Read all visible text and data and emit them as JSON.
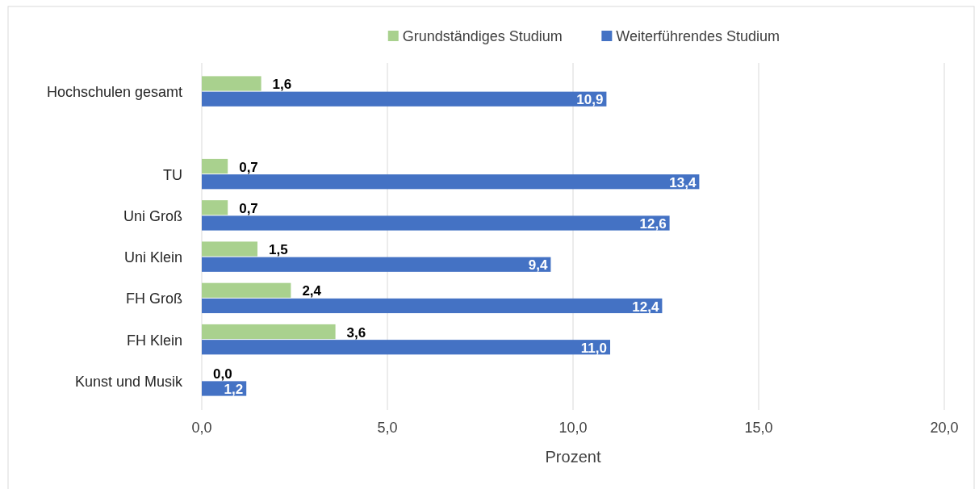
{
  "chart_data": {
    "type": "bar",
    "orientation": "horizontal",
    "xlabel": "Prozent",
    "categories": [
      "Hochschulen gesamt",
      null,
      "TU",
      "Uni Groß",
      "Uni Klein",
      "FH Groß",
      "FH Klein",
      "Kunst und Musik"
    ],
    "series": [
      {
        "name": "Grundständiges Studium",
        "color": "#a9d18e",
        "values": [
          1.6,
          null,
          0.7,
          0.7,
          1.5,
          2.4,
          3.6,
          0.0
        ],
        "value_labels": [
          "1,6",
          null,
          "0,7",
          "0,7",
          "1,5",
          "2,4",
          "3,6",
          "0,0"
        ]
      },
      {
        "name": "Weiterführendes Studium",
        "color": "#4472c4",
        "values": [
          10.9,
          null,
          13.4,
          12.6,
          9.4,
          12.4,
          11.0,
          1.2
        ],
        "value_labels": [
          "10,9",
          null,
          "13,4",
          "12,6",
          "9,4",
          "12,4",
          "11,0",
          "1,2"
        ]
      }
    ],
    "xlim": [
      0,
      20
    ],
    "xticks": [
      {
        "value": 0,
        "label": "0,0"
      },
      {
        "value": 5,
        "label": "5,0"
      },
      {
        "value": 10,
        "label": "10,0"
      },
      {
        "value": 15,
        "label": "15,0"
      },
      {
        "value": 20,
        "label": "20,0"
      }
    ],
    "grid": "x",
    "legend": "top"
  }
}
